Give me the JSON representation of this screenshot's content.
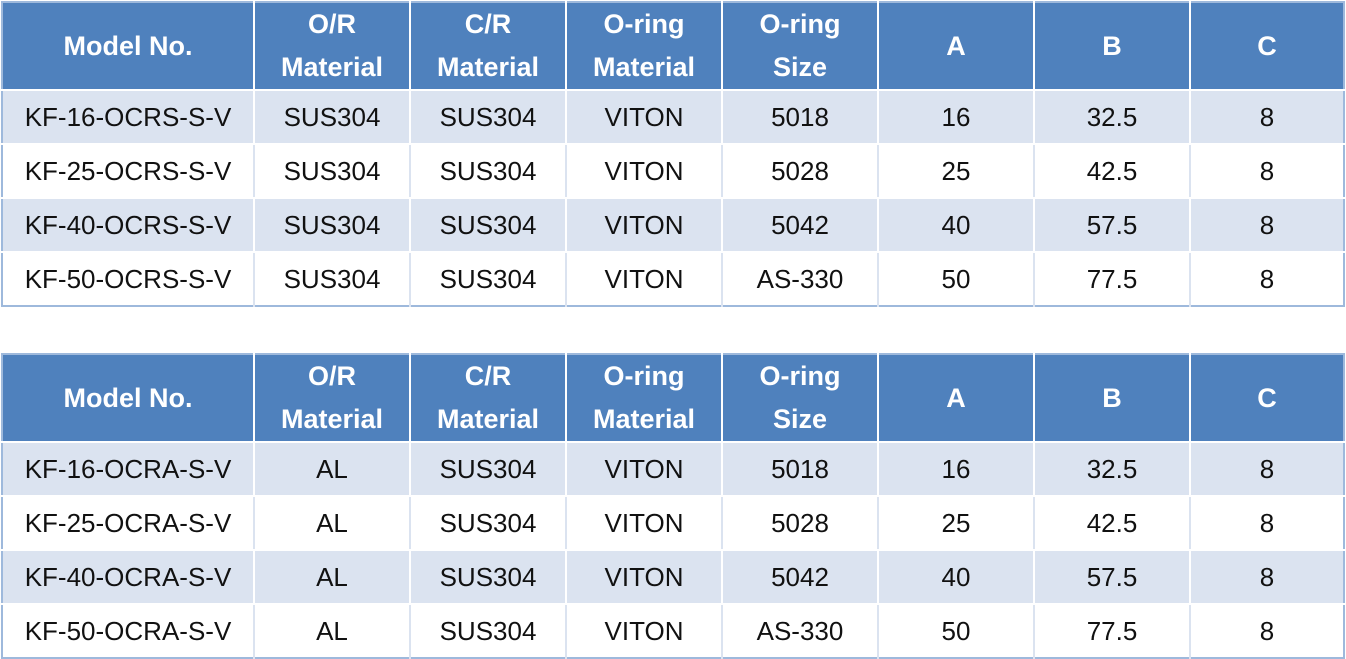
{
  "tables": [
    {
      "headers": [
        {
          "line1": "Model No.",
          "line2": ""
        },
        {
          "line1": "O/R",
          "line2": "Material"
        },
        {
          "line1": "C/R",
          "line2": "Material"
        },
        {
          "line1": "O-ring",
          "line2": "Material"
        },
        {
          "line1": "O-ring",
          "line2": "Size"
        },
        {
          "line1": "A",
          "line2": ""
        },
        {
          "line1": "B",
          "line2": ""
        },
        {
          "line1": "C",
          "line2": ""
        }
      ],
      "rows": [
        [
          "KF-16-OCRS-S-V",
          "SUS304",
          "SUS304",
          "VITON",
          "5018",
          "16",
          "32.5",
          "8"
        ],
        [
          "KF-25-OCRS-S-V",
          "SUS304",
          "SUS304",
          "VITON",
          "5028",
          "25",
          "42.5",
          "8"
        ],
        [
          "KF-40-OCRS-S-V",
          "SUS304",
          "SUS304",
          "VITON",
          "5042",
          "40",
          "57.5",
          "8"
        ],
        [
          "KF-50-OCRS-S-V",
          "SUS304",
          "SUS304",
          "VITON",
          "AS-330",
          "50",
          "77.5",
          "8"
        ]
      ]
    },
    {
      "headers": [
        {
          "line1": "Model No.",
          "line2": ""
        },
        {
          "line1": "O/R",
          "line2": "Material"
        },
        {
          "line1": "C/R",
          "line2": "Material"
        },
        {
          "line1": "O-ring",
          "line2": "Material"
        },
        {
          "line1": "O-ring",
          "line2": "Size"
        },
        {
          "line1": "A",
          "line2": ""
        },
        {
          "line1": "B",
          "line2": ""
        },
        {
          "line1": "C",
          "line2": ""
        }
      ],
      "rows": [
        [
          "KF-16-OCRA-S-V",
          "AL",
          "SUS304",
          "VITON",
          "5018",
          "16",
          "32.5",
          "8"
        ],
        [
          "KF-25-OCRA-S-V",
          "AL",
          "SUS304",
          "VITON",
          "5028",
          "25",
          "42.5",
          "8"
        ],
        [
          "KF-40-OCRA-S-V",
          "AL",
          "SUS304",
          "VITON",
          "5042",
          "40",
          "57.5",
          "8"
        ],
        [
          "KF-50-OCRA-S-V",
          "AL",
          "SUS304",
          "VITON",
          "AS-330",
          "50",
          "77.5",
          "8"
        ]
      ]
    }
  ],
  "colors": {
    "header_bg": "#4f81bd",
    "header_text": "#ffffff",
    "band_row_bg": "#dbe3f0",
    "plain_row_bg": "#ffffff",
    "outer_border": "#9eb9dc"
  }
}
